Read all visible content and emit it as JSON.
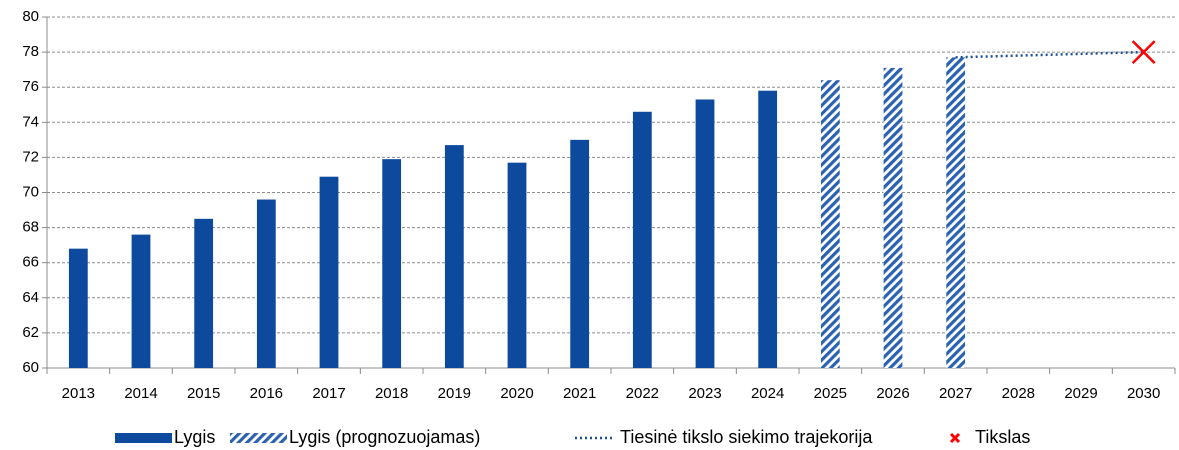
{
  "chart_data": {
    "type": "bar",
    "categories": [
      "2013",
      "2014",
      "2015",
      "2016",
      "2017",
      "2018",
      "2019",
      "2020",
      "2021",
      "2022",
      "2023",
      "2024",
      "2025",
      "2026",
      "2027",
      "2028",
      "2029",
      "2030"
    ],
    "series": [
      {
        "name": "Lygis",
        "type": "bar",
        "color": "#0d4a9e",
        "values": [
          66.8,
          67.6,
          68.5,
          69.6,
          70.9,
          71.9,
          72.7,
          71.7,
          73.0,
          74.6,
          75.3,
          75.8,
          null,
          null,
          null,
          null,
          null,
          null
        ]
      },
      {
        "name": "Lygis (prognozuojamas)",
        "type": "bar",
        "hatched": true,
        "color": "#2a62b0",
        "values": [
          null,
          null,
          null,
          null,
          null,
          null,
          null,
          null,
          null,
          null,
          null,
          null,
          76.4,
          77.1,
          77.7,
          null,
          null,
          null
        ]
      },
      {
        "name": "Tiesinė tikslo siekimo trajekorija",
        "type": "line",
        "dotted": true,
        "color": "#1f4e99",
        "values": [
          null,
          null,
          null,
          null,
          null,
          null,
          null,
          null,
          null,
          null,
          null,
          null,
          null,
          null,
          77.7,
          77.8,
          77.9,
          78.0
        ]
      },
      {
        "name": "Tikslas",
        "type": "scatter",
        "marker": "x",
        "color": "#ff0000",
        "values": [
          null,
          null,
          null,
          null,
          null,
          null,
          null,
          null,
          null,
          null,
          null,
          null,
          null,
          null,
          null,
          null,
          null,
          78
        ]
      }
    ],
    "ylim": [
      60,
      80
    ],
    "yticks": [
      60,
      62,
      64,
      66,
      68,
      70,
      72,
      74,
      76,
      78,
      80
    ],
    "grid": true,
    "legend": "bottom"
  }
}
